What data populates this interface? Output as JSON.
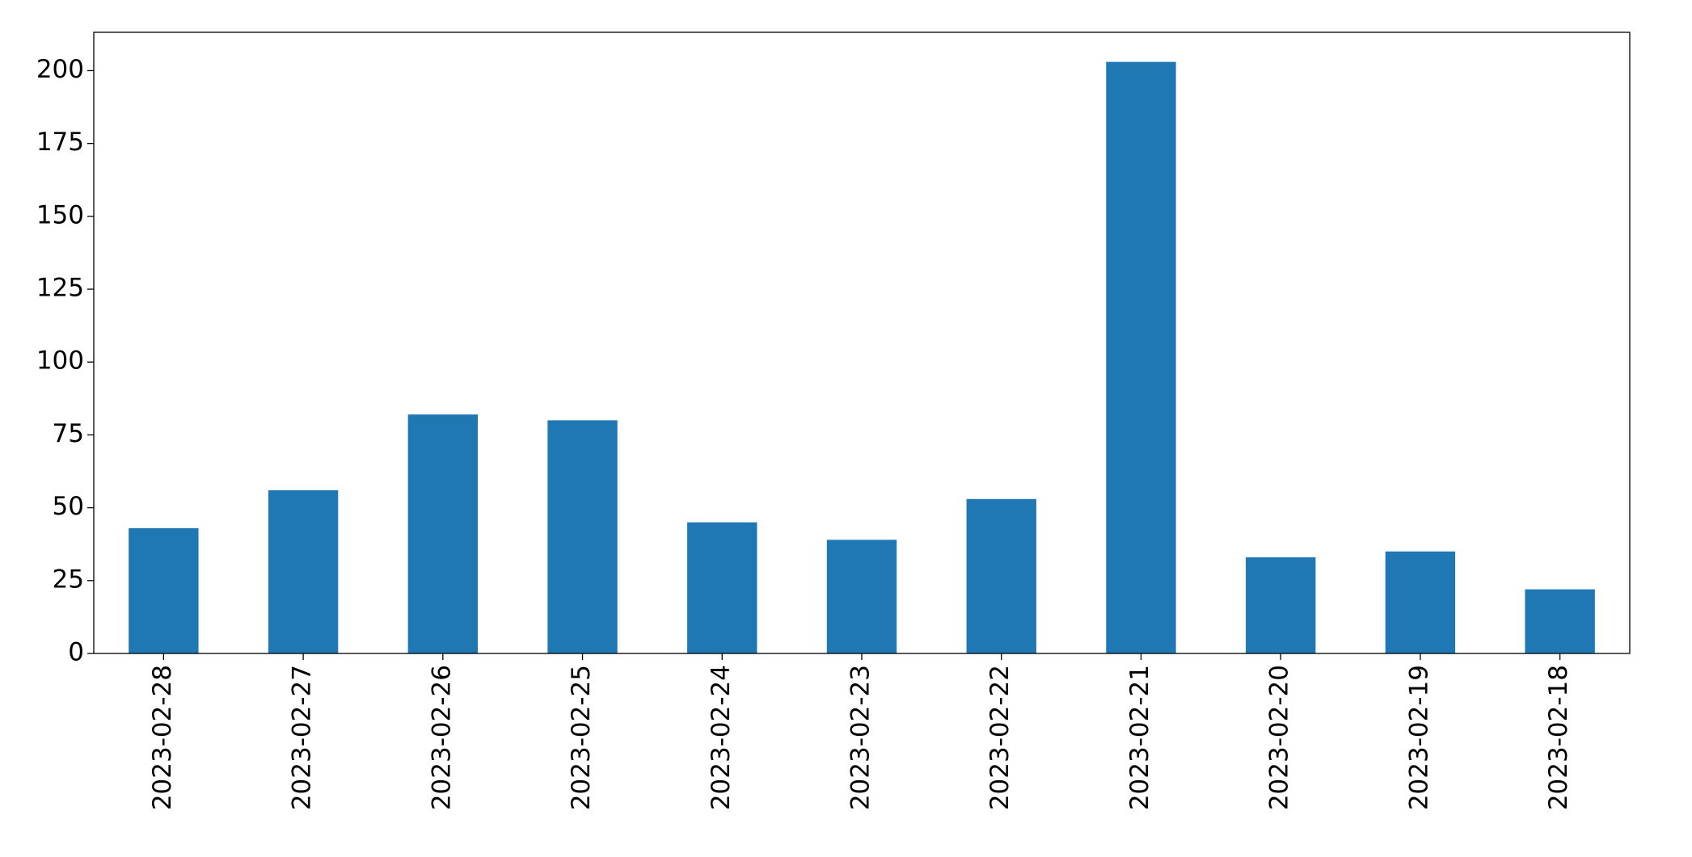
{
  "chart_data": {
    "type": "bar",
    "categories": [
      "2023-02-28",
      "2023-02-27",
      "2023-02-26",
      "2023-02-25",
      "2023-02-24",
      "2023-02-23",
      "2023-02-22",
      "2023-02-21",
      "2023-02-20",
      "2023-02-19",
      "2023-02-18"
    ],
    "values": [
      43,
      56,
      82,
      80,
      45,
      39,
      53,
      203,
      33,
      35,
      22
    ],
    "color": "#1f77b4",
    "ylim": [
      0,
      213.15
    ],
    "yticks": [
      0,
      25,
      50,
      75,
      100,
      125,
      150,
      175,
      200
    ],
    "grid": false
  }
}
